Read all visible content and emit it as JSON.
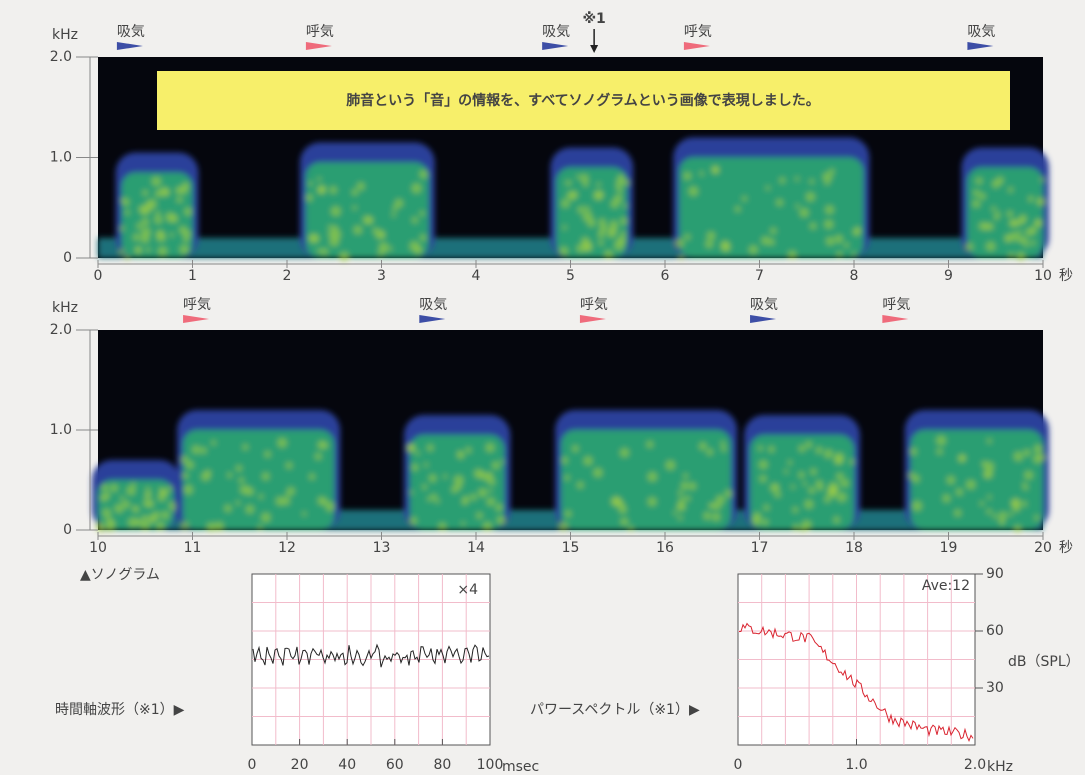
{
  "banner": "肺音という「音」の情報を、すべてソノグラムという画像で表現しました。",
  "sonograms": [
    {
      "y_unit": "kHz",
      "ylim": [
        0,
        2
      ],
      "yticks": [
        {
          "value": 2,
          "label": "2.0"
        },
        {
          "value": 1,
          "label": "1.0"
        },
        0
      ],
      "xlim": [
        0,
        10
      ],
      "xticks": [
        0,
        1,
        2,
        3,
        4,
        5,
        6,
        7,
        8,
        9,
        10
      ],
      "x_unit": "秒",
      "markers": [
        {
          "label": "吸気",
          "t": 0.2,
          "color": "#3d4ea6"
        },
        {
          "label": "呼気",
          "t": 2.2,
          "color": "#ef6b7b"
        },
        {
          "label": "吸気",
          "t": 4.7,
          "color": "#3d4ea6"
        },
        {
          "label": "呼気",
          "t": 6.2,
          "color": "#ef6b7b"
        },
        {
          "label": "吸気",
          "t": 9.2,
          "color": "#3d4ea6"
        }
      ]
    },
    {
      "y_unit": "kHz",
      "ylim": [
        0,
        2
      ],
      "yticks": [
        {
          "value": 2,
          "label": "2.0"
        },
        {
          "value": 1,
          "label": "1.0"
        },
        0
      ],
      "xlim": [
        10,
        20
      ],
      "xticks": [
        10,
        11,
        12,
        13,
        14,
        15,
        16,
        17,
        18,
        19,
        20
      ],
      "x_unit": "秒",
      "markers": [
        {
          "label": "呼気",
          "t": 10.9,
          "color": "#ef6b7b"
        },
        {
          "label": "吸気",
          "t": 13.4,
          "color": "#3d4ea6"
        },
        {
          "label": "呼気",
          "t": 15.1,
          "color": "#ef6b7b"
        },
        {
          "label": "吸気",
          "t": 16.9,
          "color": "#3d4ea6"
        },
        {
          "label": "呼気",
          "t": 18.3,
          "color": "#ef6b7b"
        }
      ]
    }
  ],
  "note": {
    "label": "※1",
    "t": 5.25
  },
  "caption": "▲ソノグラム",
  "waveform": {
    "label": "時間軸波形（※1）▶",
    "gain": "×4",
    "xlim": [
      0,
      100
    ],
    "xticks": [
      0,
      20,
      40,
      60,
      80,
      100
    ],
    "x_unit": "msec"
  },
  "spectrum": {
    "label": "パワースペクトル（※1）▶",
    "average": "Ave:12",
    "xlim": [
      0,
      2
    ],
    "xticks": [
      0,
      {
        "value": 1,
        "label": "1.0"
      },
      {
        "value": 2,
        "label": "2.0"
      }
    ],
    "x_unit": "kHz",
    "ylim": [
      0,
      90
    ],
    "yticks": [
      90,
      60,
      30
    ],
    "y_unit": "dB（SPL）"
  }
}
